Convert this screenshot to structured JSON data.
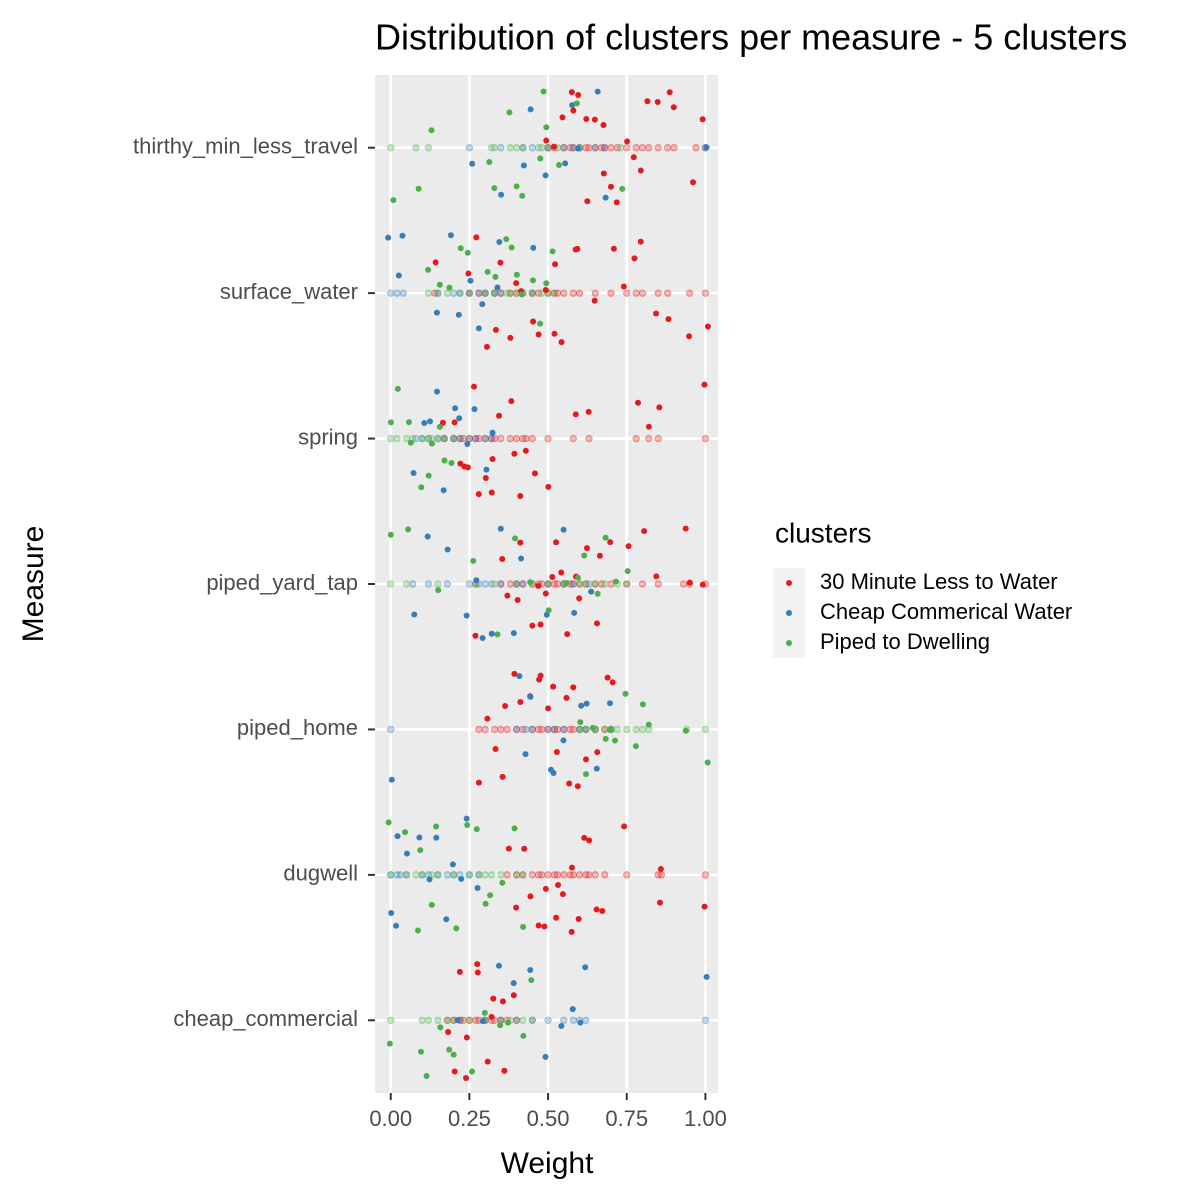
{
  "chart_data": {
    "type": "strip",
    "title": "Distribution of clusters per measure - 5 clusters",
    "x_label": "Weight",
    "y_label": "Measure",
    "categories": [
      "thirthy_min_less_travel",
      "surface_water",
      "spring",
      "piped_yard_tap",
      "piped_home",
      "dugwell",
      "cheap_commercial"
    ],
    "xlim": [
      -0.05,
      1.04
    ],
    "xticks": [
      {
        "value": 0,
        "label": "0.00"
      },
      {
        "value": 0.25,
        "label": "0.25"
      },
      {
        "value": 0.5,
        "label": "0.50"
      },
      {
        "value": 0.75,
        "label": "0.75"
      },
      {
        "value": 1,
        "label": "1.00"
      }
    ],
    "grid": true,
    "legend_title": "clusters",
    "legend_position": "right",
    "series": [
      {
        "name": "30 Minute Less to Water",
        "color": "#e41a1c",
        "values": [
          [
            0.5,
            0.52,
            0.55,
            0.57,
            0.58,
            0.6,
            0.62,
            0.63,
            0.65,
            0.67,
            0.68,
            0.7,
            0.72,
            0.75,
            0.78,
            0.8,
            0.82,
            0.85,
            0.88,
            0.9,
            0.97,
            1.0
          ],
          [
            0.14,
            0.25,
            0.28,
            0.3,
            0.33,
            0.35,
            0.38,
            0.4,
            0.42,
            0.45,
            0.47,
            0.5,
            0.52,
            0.53,
            0.55,
            0.58,
            0.6,
            0.65,
            0.7,
            0.75,
            0.78,
            0.8,
            0.85,
            0.88,
            0.95,
            1.0
          ],
          [
            0.17,
            0.2,
            0.22,
            0.23,
            0.25,
            0.27,
            0.28,
            0.3,
            0.32,
            0.33,
            0.35,
            0.38,
            0.4,
            0.42,
            0.43,
            0.45,
            0.5,
            0.58,
            0.63,
            0.78,
            0.82,
            0.85,
            1.0
          ],
          [
            0.27,
            0.35,
            0.38,
            0.4,
            0.42,
            0.45,
            0.47,
            0.48,
            0.5,
            0.52,
            0.53,
            0.55,
            0.57,
            0.58,
            0.6,
            0.62,
            0.65,
            0.67,
            0.7,
            0.75,
            0.8,
            0.85,
            0.93,
            0.95,
            1.0
          ],
          [
            0.28,
            0.3,
            0.33,
            0.35,
            0.37,
            0.4,
            0.42,
            0.45,
            0.47,
            0.48,
            0.5,
            0.52,
            0.53,
            0.55,
            0.57,
            0.58,
            0.6,
            0.62,
            0.65,
            0.68,
            0.7
          ],
          [
            0.37,
            0.4,
            0.42,
            0.45,
            0.47,
            0.48,
            0.5,
            0.52,
            0.53,
            0.55,
            0.57,
            0.58,
            0.6,
            0.62,
            0.63,
            0.65,
            0.68,
            0.75,
            0.85,
            0.86,
            1.0
          ],
          [
            0.18,
            0.2,
            0.22,
            0.23,
            0.25,
            0.27,
            0.28,
            0.3,
            0.32,
            0.33,
            0.35,
            0.37,
            0.4
          ]
        ]
      },
      {
        "name": "Cheap Commerical Water",
        "color": "#377eb8",
        "values": [
          [
            0.25,
            0.35,
            0.42,
            0.45,
            0.5,
            0.55,
            0.58,
            0.6,
            0.65,
            0.68,
            1.0
          ],
          [
            0.0,
            0.02,
            0.04,
            0.15,
            0.2,
            0.22,
            0.25,
            0.28,
            0.3,
            0.33,
            0.35,
            0.45
          ],
          [
            0.08,
            0.1,
            0.12,
            0.15,
            0.17,
            0.2,
            0.22,
            0.25,
            0.27,
            0.3,
            0.32
          ],
          [
            0.07,
            0.12,
            0.18,
            0.25,
            0.28,
            0.3,
            0.32,
            0.35,
            0.4,
            0.42,
            0.5,
            0.55,
            0.58,
            0.63
          ],
          [
            0.0,
            0.4,
            0.43,
            0.45,
            0.5,
            0.52,
            0.55,
            0.6,
            0.62,
            0.65,
            0.7
          ],
          [
            0.0,
            0.02,
            0.03,
            0.05,
            0.1,
            0.12,
            0.15,
            0.18,
            0.2,
            0.22,
            0.25,
            0.28
          ],
          [
            0.22,
            0.3,
            0.35,
            0.4,
            0.45,
            0.5,
            0.55,
            0.58,
            0.6,
            0.62,
            1.0
          ]
        ]
      },
      {
        "name": "Piped to Dwelling",
        "color": "#4daf4a",
        "values": [
          [
            0.0,
            0.08,
            0.12,
            0.32,
            0.33,
            0.38,
            0.4,
            0.42,
            0.47,
            0.48,
            0.5,
            0.53,
            0.6,
            0.73
          ],
          [
            0.12,
            0.15,
            0.18,
            0.22,
            0.25,
            0.3,
            0.33,
            0.37,
            0.38,
            0.4,
            0.42,
            0.45,
            0.48,
            0.5,
            0.52
          ],
          [
            0.0,
            0.02,
            0.05,
            0.07,
            0.1,
            0.12,
            0.13,
            0.15,
            0.17,
            0.2
          ],
          [
            0.0,
            0.05,
            0.15,
            0.27,
            0.33,
            0.4,
            0.45,
            0.5,
            0.55,
            0.6,
            0.62,
            0.65,
            0.68,
            0.72,
            0.75
          ],
          [
            0.6,
            0.62,
            0.65,
            0.68,
            0.7,
            0.72,
            0.75,
            0.78,
            0.8,
            0.82,
            0.94,
            1.0
          ],
          [
            0.0,
            0.05,
            0.08,
            0.1,
            0.13,
            0.15,
            0.2,
            0.25,
            0.28,
            0.3,
            0.32,
            0.35,
            0.4,
            0.42
          ],
          [
            0.0,
            0.1,
            0.12,
            0.15,
            0.18,
            0.2,
            0.25,
            0.3,
            0.35,
            0.38,
            0.42,
            0.45
          ]
        ]
      }
    ]
  }
}
